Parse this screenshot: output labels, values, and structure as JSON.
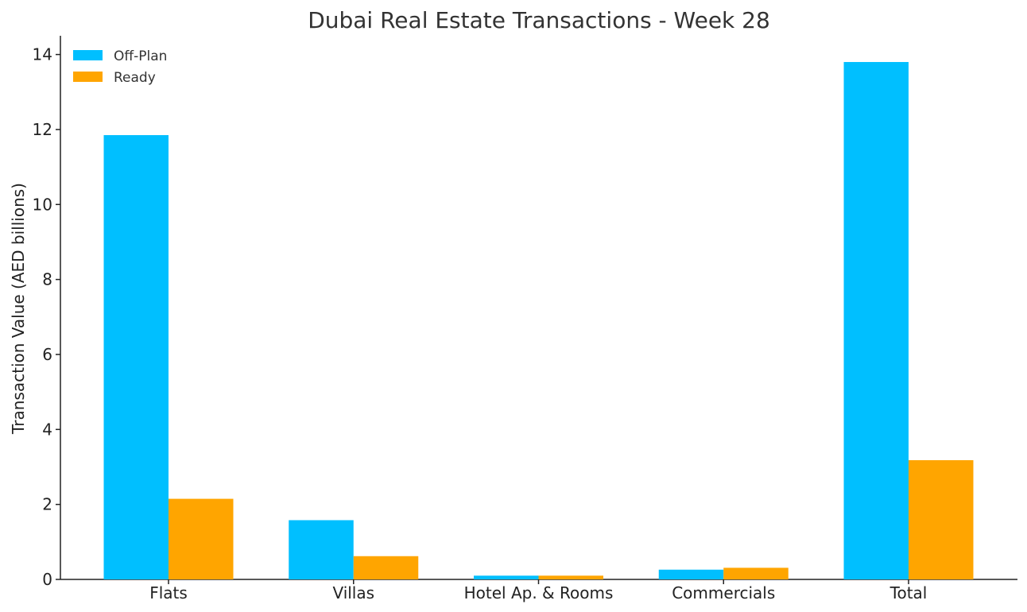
{
  "chart_data": {
    "type": "bar",
    "title": "Dubai Real Estate Transactions - Week 28",
    "xlabel": "",
    "ylabel": "Transaction Value (AED billions)",
    "categories": [
      "Flats",
      "Villas",
      "Hotel Ap. & Rooms",
      "Commercials",
      "Total"
    ],
    "series": [
      {
        "name": "Off-Plan",
        "color": "#00BFFF",
        "values": [
          11.85,
          1.58,
          0.1,
          0.26,
          13.8
        ]
      },
      {
        "name": "Ready",
        "color": "#FFA500",
        "values": [
          2.15,
          0.62,
          0.1,
          0.31,
          3.18
        ]
      }
    ],
    "ylim": [
      0,
      14.5
    ],
    "yticks": [
      0,
      2,
      4,
      6,
      8,
      10,
      12,
      14
    ],
    "grid": false,
    "legend_position": "top-left"
  }
}
